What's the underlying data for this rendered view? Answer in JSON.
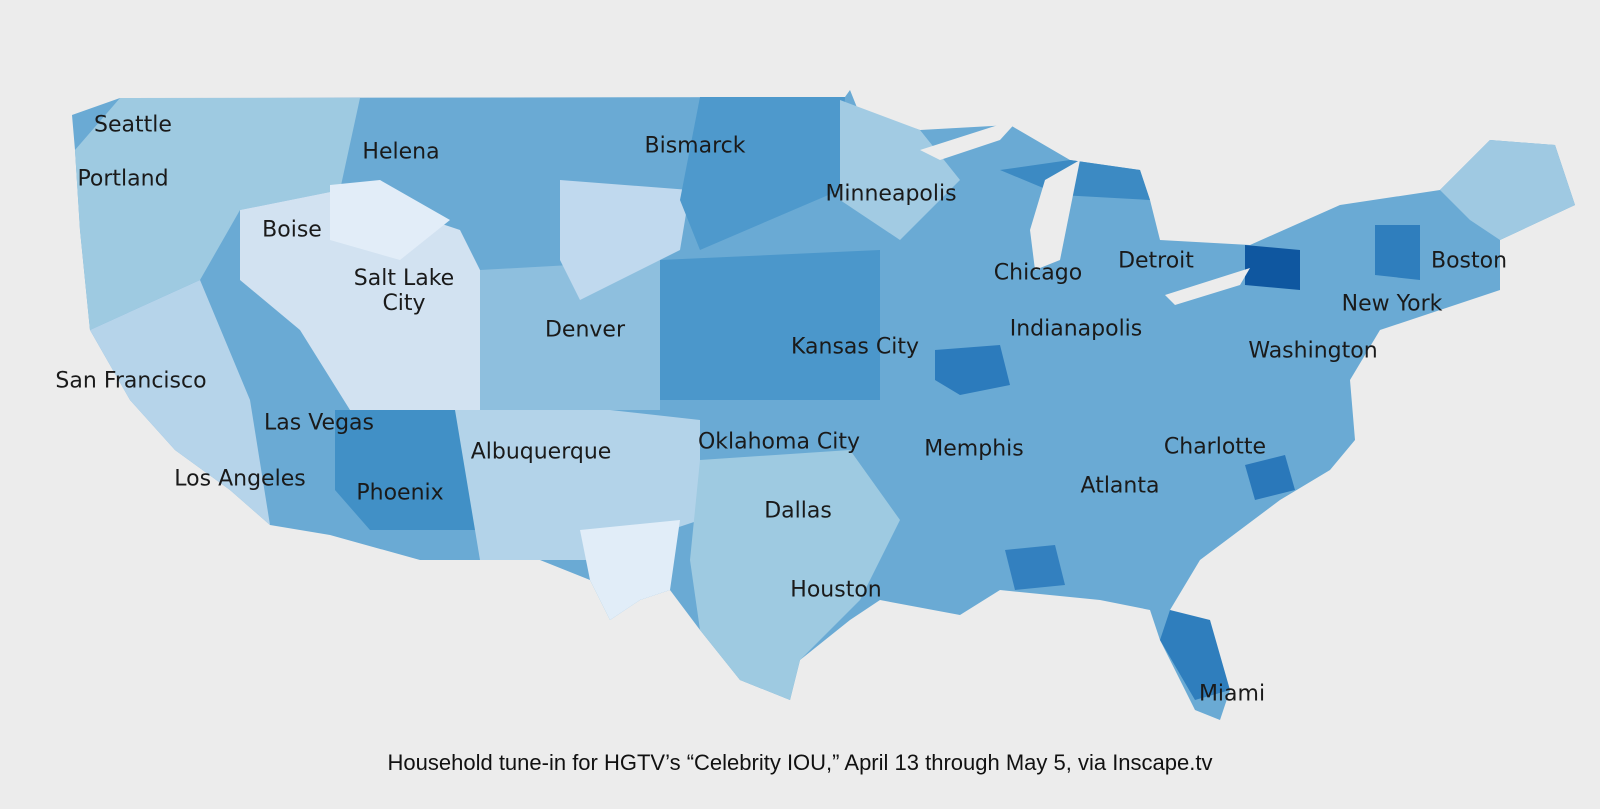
{
  "map": {
    "labels": [
      "Seattle",
      "Portland",
      "Helena",
      "Bismarck",
      "Minneapolis",
      "Boise",
      "Salt Lake City",
      "Denver",
      "Kansas City",
      "Chicago",
      "Detroit",
      "Boston",
      "New York",
      "Indianapolis",
      "Washington",
      "San Francisco",
      "Las Vegas",
      "Albuquerque",
      "Oklahoma City",
      "Memphis",
      "Charlotte",
      "Los Angeles",
      "Phoenix",
      "Atlanta",
      "Dallas",
      "Houston",
      "Miami"
    ]
  },
  "caption": "Household tune-in for HGTV’s “Celebrity IOU,” April 13 through May 5, via Inscape.tv"
}
